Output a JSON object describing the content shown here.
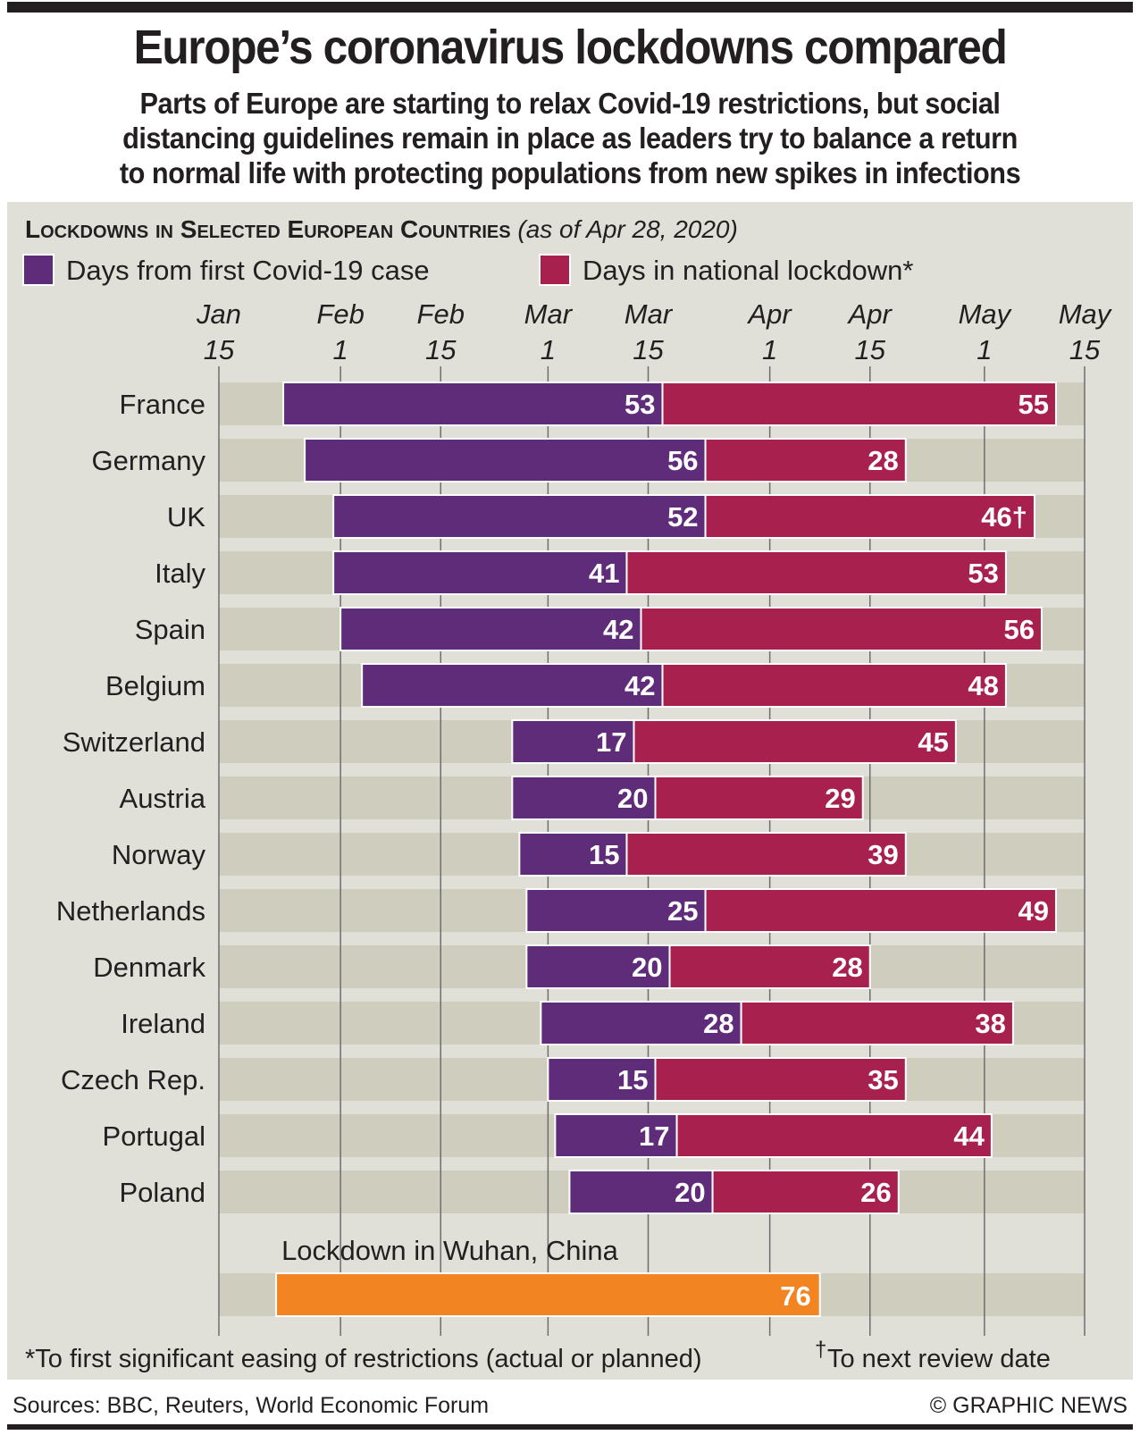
{
  "title": "Europe’s coronavirus lockdowns compared",
  "subtitle": [
    "Parts of Europe are starting to relax Covid-19 restrictions, but social",
    "distancing guidelines remain in place as leaders try to balance a return",
    "to normal life with protecting populations from new spikes in infections"
  ],
  "sources": "Sources: BBC, Reuters, World Economic Forum",
  "credit": "© GRAPHIC NEWS",
  "colors": {
    "purple": "#5f2c7a",
    "red": "#a8204e",
    "orange": "#f28421",
    "panel": "#e1e0d8",
    "band": "#cfcdbd"
  },
  "chart_data": {
    "type": "bar",
    "subtype": "stacked-horizontal-timeline",
    "title_caps": "Lockdowns in Selected European Countries",
    "title_note": "(as of Apr 28, 2020)",
    "legend": [
      {
        "name": "Days from first Covid-19 case",
        "color": "#5f2c7a"
      },
      {
        "name": "Days in national lockdown*",
        "color": "#a8204e"
      }
    ],
    "x_axis": {
      "unit": "days since Jan 15, 2020",
      "range": [
        0,
        121
      ],
      "ticks": [
        {
          "day": 0,
          "m": "Jan",
          "d": "15"
        },
        {
          "day": 17,
          "m": "Feb",
          "d": "1"
        },
        {
          "day": 31,
          "m": "Feb",
          "d": "15"
        },
        {
          "day": 46,
          "m": "Mar",
          "d": "1"
        },
        {
          "day": 60,
          "m": "Mar",
          "d": "15"
        },
        {
          "day": 77,
          "m": "Apr",
          "d": "1"
        },
        {
          "day": 91,
          "m": "Apr",
          "d": "15"
        },
        {
          "day": 107,
          "m": "May",
          "d": "1"
        },
        {
          "day": 121,
          "m": "May",
          "d": "15"
        }
      ]
    },
    "countries": [
      {
        "name": "France",
        "first_case_day": 9,
        "days_from_first_case": 53,
        "days_lockdown": 55,
        "lockdown_label": "55"
      },
      {
        "name": "Germany",
        "first_case_day": 12,
        "days_from_first_case": 56,
        "days_lockdown": 28,
        "lockdown_label": "28"
      },
      {
        "name": "UK",
        "first_case_day": 16,
        "days_from_first_case": 52,
        "days_lockdown": 46,
        "lockdown_label": "46†"
      },
      {
        "name": "Italy",
        "first_case_day": 16,
        "days_from_first_case": 41,
        "days_lockdown": 53,
        "lockdown_label": "53"
      },
      {
        "name": "Spain",
        "first_case_day": 17,
        "days_from_first_case": 42,
        "days_lockdown": 56,
        "lockdown_label": "56"
      },
      {
        "name": "Belgium",
        "first_case_day": 20,
        "days_from_first_case": 42,
        "days_lockdown": 48,
        "lockdown_label": "48"
      },
      {
        "name": "Switzerland",
        "first_case_day": 41,
        "days_from_first_case": 17,
        "days_lockdown": 45,
        "lockdown_label": "45"
      },
      {
        "name": "Austria",
        "first_case_day": 41,
        "days_from_first_case": 20,
        "days_lockdown": 29,
        "lockdown_label": "29"
      },
      {
        "name": "Norway",
        "first_case_day": 42,
        "days_from_first_case": 15,
        "days_lockdown": 39,
        "lockdown_label": "39"
      },
      {
        "name": "Netherlands",
        "first_case_day": 43,
        "days_from_first_case": 25,
        "days_lockdown": 49,
        "lockdown_label": "49"
      },
      {
        "name": "Denmark",
        "first_case_day": 43,
        "days_from_first_case": 20,
        "days_lockdown": 28,
        "lockdown_label": "28"
      },
      {
        "name": "Ireland",
        "first_case_day": 45,
        "days_from_first_case": 28,
        "days_lockdown": 38,
        "lockdown_label": "38"
      },
      {
        "name": "Czech Rep.",
        "first_case_day": 46,
        "days_from_first_case": 15,
        "days_lockdown": 35,
        "lockdown_label": "35"
      },
      {
        "name": "Portugal",
        "first_case_day": 47,
        "days_from_first_case": 17,
        "days_lockdown": 44,
        "lockdown_label": "44"
      },
      {
        "name": "Poland",
        "first_case_day": 49,
        "days_from_first_case": 20,
        "days_lockdown": 26,
        "lockdown_label": "26"
      }
    ],
    "wuhan": {
      "label": "Lockdown in Wuhan, China",
      "start_day": 8,
      "days": 76,
      "value_label": "76",
      "color": "#f28421"
    },
    "footnotes": {
      "asterisk": "*To first significant easing of restrictions (actual or planned)",
      "dagger_mark": "†",
      "dagger": "To next review date"
    }
  }
}
